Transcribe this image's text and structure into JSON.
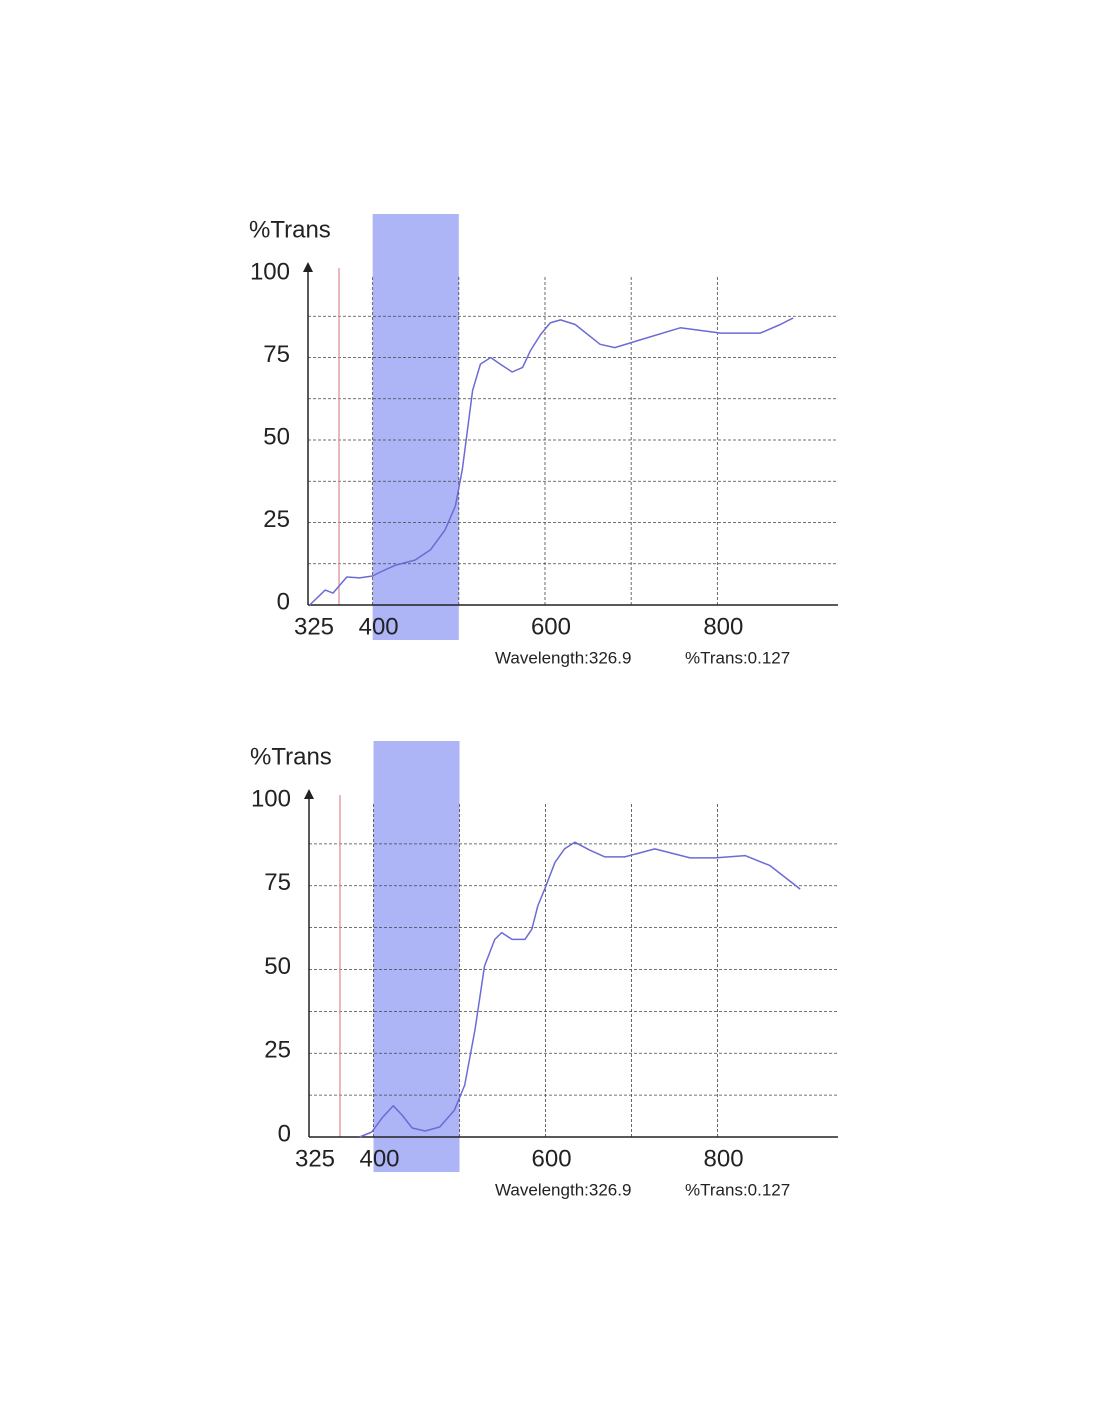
{
  "chart_data": [
    {
      "type": "line",
      "y_label": "%Trans",
      "x": [
        327,
        345,
        354,
        370,
        385,
        400,
        409,
        426,
        449,
        467,
        484,
        496,
        504,
        516,
        525,
        537,
        548,
        562,
        574,
        583,
        595,
        606,
        618,
        635,
        664,
        681,
        710,
        757,
        804,
        850,
        873,
        888
      ],
      "series": [
        {
          "color": "#6b6bd6",
          "values": [
            0,
            4.5,
            3.6,
            8.5,
            8.2,
            8.8,
            10,
            12,
            13.6,
            16.7,
            22.7,
            30,
            41,
            65,
            73,
            75,
            73,
            70.6,
            72,
            77,
            82,
            85.5,
            86.4,
            85,
            79,
            78,
            80.3,
            84,
            82.4,
            82.4,
            85,
            87
          ]
        }
      ],
      "xlim": [
        325,
        940
      ],
      "ylim": [
        0,
        100
      ],
      "xticks": [
        325,
        400,
        600,
        800
      ],
      "yticks": [
        0,
        25,
        50,
        75,
        100
      ],
      "xgrid": [
        400,
        500,
        600,
        700,
        800
      ],
      "ygrid": [
        12.5,
        25,
        37.5,
        50,
        62.5,
        75,
        87.5
      ],
      "highlight": [
        400,
        500
      ],
      "highlight_color": "#adb5f7",
      "marker_x": 361,
      "marker_color": "#d98a95",
      "readouts": [
        "Wavelength:326.9",
        "%Trans:0.127"
      ]
    },
    {
      "type": "line",
      "y_label": "%Trans",
      "x": [
        384,
        398,
        410,
        423,
        433,
        445,
        460,
        477,
        494,
        506,
        518,
        529,
        541,
        549,
        561,
        576,
        584,
        591,
        599,
        611,
        622,
        634,
        651,
        669,
        692,
        727,
        768,
        797,
        832,
        861,
        896
      ],
      "series": [
        {
          "color": "#6b6bd6",
          "values": [
            0,
            1.5,
            5.7,
            9.3,
            6.6,
            2.7,
            1.8,
            3,
            8,
            15.5,
            32,
            51,
            59,
            61,
            59,
            59,
            62,
            69,
            74,
            82,
            86,
            88,
            85.7,
            83.6,
            83.6,
            86,
            83.3,
            83.3,
            84,
            81,
            74
          ]
        }
      ],
      "xlim": [
        325,
        940
      ],
      "ylim": [
        0,
        100
      ],
      "xticks": [
        325,
        400,
        600,
        800
      ],
      "yticks": [
        0,
        25,
        50,
        75,
        100
      ],
      "xgrid": [
        400,
        500,
        600,
        700,
        800
      ],
      "ygrid": [
        12.5,
        25,
        37.5,
        50,
        62.5,
        75,
        87.5
      ],
      "highlight": [
        400,
        500
      ],
      "highlight_color": "#adb5f7",
      "marker_x": 361,
      "marker_color": "#d98a95",
      "readouts": [
        "Wavelength:326.9",
        "%Trans:0.127"
      ]
    }
  ]
}
